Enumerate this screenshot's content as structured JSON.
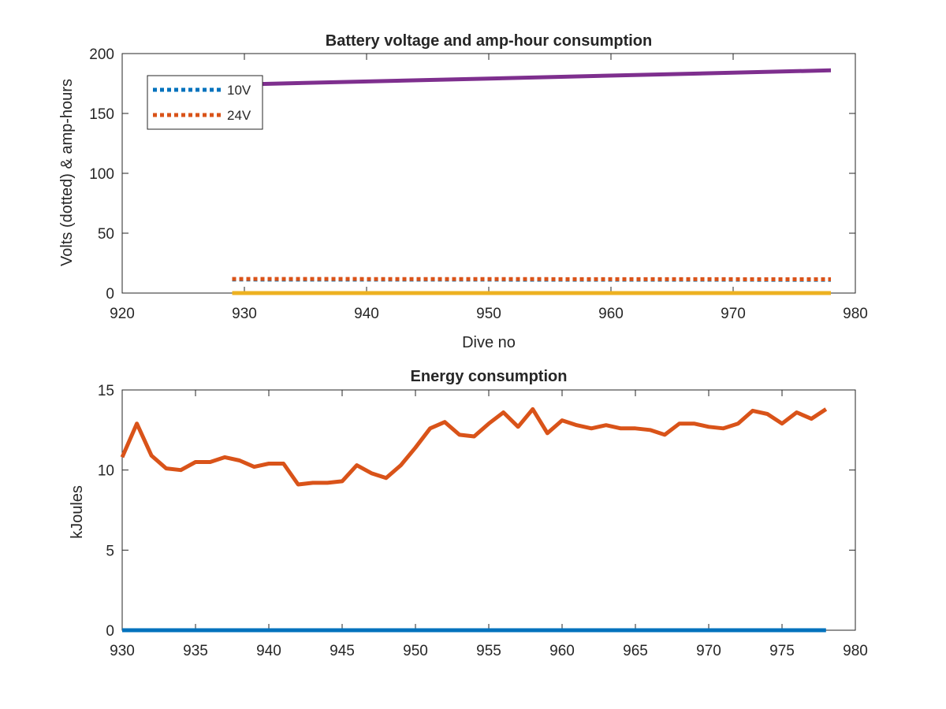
{
  "chart_data": [
    {
      "type": "line",
      "title": "Battery voltage and amp-hour consumption",
      "xlabel": "Dive no",
      "ylabel": "Volts (dotted) & amp-hours",
      "xlim": [
        920,
        980
      ],
      "ylim": [
        0,
        200
      ],
      "xticks": [
        "920",
        "930",
        "940",
        "950",
        "960",
        "970",
        "980"
      ],
      "yticks": [
        "0",
        "50",
        "100",
        "150",
        "200"
      ],
      "grid": false,
      "legend_position": "top-left",
      "series": [
        {
          "name": "10V",
          "color": "#0072BD",
          "style": "dotted",
          "x": [
            929,
            978
          ],
          "y": [
            11.3,
            11.1
          ]
        },
        {
          "name": "24V",
          "color": "#D95319",
          "style": "dotted",
          "x": [
            929,
            978
          ],
          "y": [
            11.8,
            11.5
          ]
        },
        {
          "color": "#EDB120",
          "style": "solid",
          "x": [
            929,
            978
          ],
          "y": [
            0,
            0
          ]
        },
        {
          "color": "#7E2F8E",
          "style": "solid",
          "x": [
            929,
            978
          ],
          "y": [
            174,
            186
          ]
        }
      ]
    },
    {
      "type": "line",
      "title": "Energy consumption",
      "xlabel": "",
      "ylabel": "kJoules",
      "xlim": [
        930,
        980
      ],
      "ylim": [
        0,
        15
      ],
      "xticks": [
        "930",
        "935",
        "940",
        "945",
        "950",
        "955",
        "960",
        "965",
        "970",
        "975",
        "980"
      ],
      "yticks": [
        "0",
        "5",
        "10",
        "15"
      ],
      "grid": false,
      "series": [
        {
          "color": "#D95319",
          "style": "solid",
          "x": [
            930,
            931,
            932,
            933,
            934,
            935,
            936,
            937,
            938,
            939,
            940,
            941,
            942,
            943,
            944,
            945,
            946,
            947,
            948,
            949,
            950,
            951,
            952,
            953,
            954,
            955,
            956,
            957,
            958,
            959,
            960,
            961,
            962,
            963,
            964,
            965,
            966,
            967,
            968,
            969,
            970,
            971,
            972,
            973,
            974,
            975,
            976,
            977,
            978
          ],
          "y": [
            10.8,
            12.9,
            10.9,
            10.1,
            10.0,
            10.5,
            10.5,
            10.8,
            10.6,
            10.2,
            10.4,
            10.4,
            9.1,
            9.2,
            9.2,
            9.3,
            10.3,
            9.8,
            9.5,
            10.3,
            11.4,
            12.6,
            13.0,
            12.2,
            12.1,
            12.9,
            13.6,
            12.7,
            13.8,
            12.3,
            13.1,
            12.8,
            12.6,
            12.8,
            12.6,
            12.6,
            12.5,
            12.2,
            12.9,
            12.9,
            12.7,
            12.6,
            12.9,
            13.7,
            13.5,
            12.9,
            13.6,
            13.2,
            13.8
          ]
        },
        {
          "color": "#0072BD",
          "style": "solid",
          "x": [
            930,
            978
          ],
          "y": [
            0,
            0
          ]
        }
      ]
    }
  ]
}
